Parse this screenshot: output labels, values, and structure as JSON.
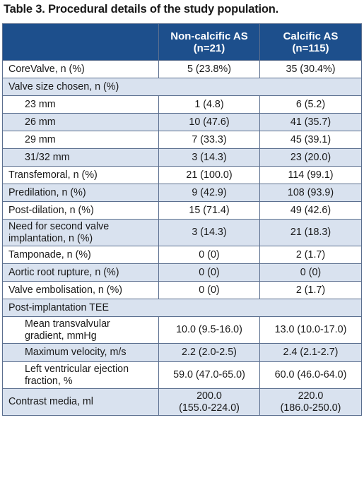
{
  "title": "Table 3. Procedural details of the study population.",
  "columns": {
    "col1": [
      "Non-calcific AS",
      "(n=21)"
    ],
    "col2": [
      "Calcific AS",
      "(n=115)"
    ]
  },
  "rows": [
    {
      "label": "CoreValve, n (%)",
      "v1": "5 (23.8%)",
      "v2": "35 (30.4%)",
      "indent": false
    },
    {
      "label": "Valve size chosen, n (%)",
      "v1": "",
      "v2": "",
      "indent": false,
      "section": true
    },
    {
      "label": "23 mm",
      "v1": "1 (4.8)",
      "v2": "6 (5.2)",
      "indent": true
    },
    {
      "label": "26 mm",
      "v1": "10 (47.6)",
      "v2": "41 (35.7)",
      "indent": true
    },
    {
      "label": "29 mm",
      "v1": "7 (33.3)",
      "v2": "45 (39.1)",
      "indent": true
    },
    {
      "label": "31/32 mm",
      "v1": "3 (14.3)",
      "v2": "23 (20.0)",
      "indent": true
    },
    {
      "label": "Transfemoral, n (%)",
      "v1": "21 (100.0)",
      "v2": "114 (99.1)",
      "indent": false
    },
    {
      "label": "Predilation, n (%)",
      "v1": "9 (42.9)",
      "v2": "108 (93.9)",
      "indent": false
    },
    {
      "label": "Post-dilation, n (%)",
      "v1": "15 (71.4)",
      "v2": "49 (42.6)",
      "indent": false
    },
    {
      "label": [
        "Need for second valve",
        "implantation, n (%)"
      ],
      "v1": "3 (14.3)",
      "v2": "21 (18.3)",
      "indent": false
    },
    {
      "label": "Tamponade, n (%)",
      "v1": "0 (0)",
      "v2": "2 (1.7)",
      "indent": false
    },
    {
      "label": "Aortic root rupture, n (%)",
      "v1": "0 (0)",
      "v2": "0 (0)",
      "indent": false
    },
    {
      "label": "Valve embolisation, n (%)",
      "v1": "0 (0)",
      "v2": "2 (1.7)",
      "indent": false
    },
    {
      "label": "Post-implantation TEE",
      "v1": "",
      "v2": "",
      "indent": false,
      "section": true
    },
    {
      "label": [
        "Mean transvalvular",
        "gradient, mmHg"
      ],
      "v1": "10.0 (9.5-16.0)",
      "v2": "13.0 (10.0-17.0)",
      "indent": true
    },
    {
      "label": "Maximum velocity, m/s",
      "v1": "2.2 (2.0-2.5)",
      "v2": "2.4 (2.1-2.7)",
      "indent": true
    },
    {
      "label": [
        "Left ventricular ejection",
        "fraction, %"
      ],
      "v1": "59.0 (47.0-65.0)",
      "v2": "60.0 (46.0-64.0)",
      "indent": true
    },
    {
      "label": "Contrast media, ml",
      "v1": [
        "200.0",
        "(155.0-224.0)"
      ],
      "v2": [
        "220.0",
        "(186.0-250.0)"
      ],
      "indent": false
    }
  ],
  "colors": {
    "header_bg": "#1d4f8c",
    "stripe_bg": "#d9e2ef",
    "border": "#5b6f8f"
  }
}
